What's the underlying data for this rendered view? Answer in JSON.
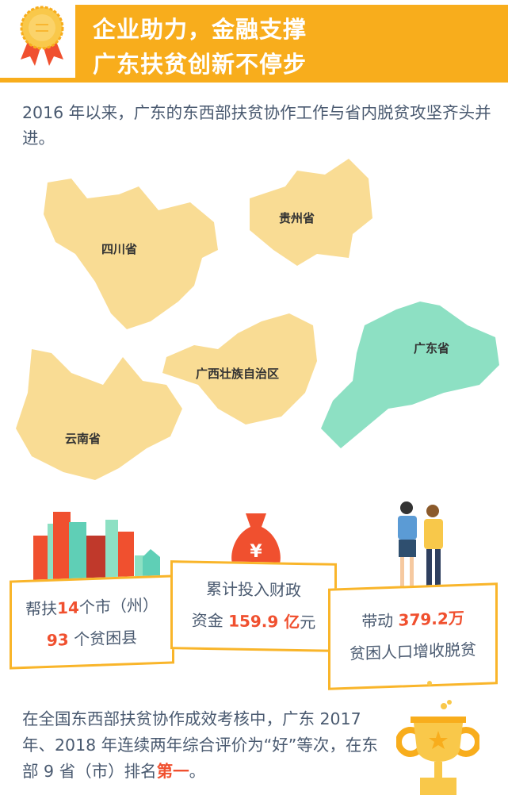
{
  "header": {
    "title_line1": "企业助力，金融支撑",
    "title_line2": "广东扶贫创新不停步",
    "icon": "medal-icon"
  },
  "intro": "2016 年以来，广东的东西部扶贫协作工作与省内脱贫攻坚齐头并进。",
  "map": {
    "provinces": [
      {
        "name": "四川省",
        "color": "#f9dc94"
      },
      {
        "name": "贵州省",
        "color": "#f9dc94"
      },
      {
        "name": "广东省",
        "color": "#8de0c3"
      },
      {
        "name": "广西壮族自治区",
        "color": "#f9dc94"
      },
      {
        "name": "云南省",
        "color": "#f9dc94"
      }
    ]
  },
  "stats": [
    {
      "icon": "buildings-icon",
      "pre": "帮扶",
      "num1": "14",
      "mid": "个市（州）",
      "num2": "93",
      "post": "个贫困县"
    },
    {
      "icon": "money-bag-icon",
      "line1": "累计投入财政",
      "pre": "资金",
      "num": "159.9 亿",
      "post": "元"
    },
    {
      "icon": "people-icon",
      "pre": "带动",
      "num": "379.2万",
      "line2": "贫困人口增收脱贫"
    }
  ],
  "outro": {
    "text": "在全国东西部扶贫协作成效考核中，广东 2017 年、2018 年连续两年综合评价为“好”等次，在东部 9 省（市）排名",
    "highlight": "第一",
    "end": "。",
    "icon": "trophy-icon"
  },
  "colors": {
    "banner": "#f8ad1c",
    "accent_red": "#f0502f",
    "box_border": "#f9b52a",
    "text": "#4a5a70"
  }
}
